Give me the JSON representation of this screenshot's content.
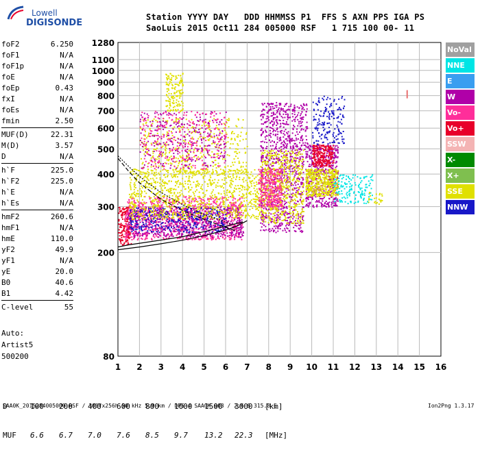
{
  "logo": {
    "top": "Lowell",
    "bottom": "DIGISONDE"
  },
  "header": {
    "line1": "Station YYYY DAY   DDD HHMMSS P1  FFS S AXN PPS IGA PS",
    "line2": "SaoLuis 2015 Oct11 284 005000 RSF   1 715 100 00- 11"
  },
  "params": [
    [
      {
        "k": "foF2",
        "v": "6.250"
      },
      {
        "k": "foF1",
        "v": "N/A"
      },
      {
        "k": "foF1p",
        "v": "N/A"
      },
      {
        "k": "foE",
        "v": "N/A"
      },
      {
        "k": "foEp",
        "v": "0.43"
      },
      {
        "k": "fxI",
        "v": "N/A"
      },
      {
        "k": "foEs",
        "v": "N/A"
      },
      {
        "k": "fmin",
        "v": "2.50"
      }
    ],
    [
      {
        "k": "MUF(D)",
        "v": "22.31"
      },
      {
        "k": "M(D)",
        "v": "3.57"
      },
      {
        "k": "D",
        "v": "N/A"
      }
    ],
    [
      {
        "k": "h`F",
        "v": "225.0"
      },
      {
        "k": "h`F2",
        "v": "225.0"
      },
      {
        "k": "h`E",
        "v": "N/A"
      },
      {
        "k": "h`Es",
        "v": "N/A"
      }
    ],
    [
      {
        "k": "hmF2",
        "v": "260.6"
      },
      {
        "k": "hmF1",
        "v": "N/A"
      },
      {
        "k": "hmE",
        "v": "110.0"
      },
      {
        "k": "yF2",
        "v": "49.9"
      },
      {
        "k": "yF1",
        "v": "N/A"
      },
      {
        "k": "yE",
        "v": "20.0"
      },
      {
        "k": "B0",
        "v": "40.6"
      },
      {
        "k": "B1",
        "v": "4.42"
      }
    ],
    [
      {
        "k": "C-level",
        "v": "55"
      }
    ]
  ],
  "auto": {
    "l1": "Auto:",
    "l2": "Artist5",
    "l3": "500200"
  },
  "legend": [
    {
      "label": "NoVal",
      "color": "#a0a0a0"
    },
    {
      "label": "NNE",
      "color": "#00e5e5"
    },
    {
      "label": "E",
      "color": "#3a9ef0"
    },
    {
      "label": "W",
      "color": "#b000a8"
    },
    {
      "label": "Vo-",
      "color": "#ff2e9a"
    },
    {
      "label": "Vo+",
      "color": "#e8002a"
    },
    {
      "label": "SSW",
      "color": "#f4b4b4"
    },
    {
      "label": "X-",
      "color": "#008a00"
    },
    {
      "label": "X+",
      "color": "#7fbf4f"
    },
    {
      "label": "SSE",
      "color": "#e0e000"
    },
    {
      "label": "NNW",
      "color": "#1818c8"
    }
  ],
  "dtable": {
    "d_label": "D",
    "d_values": [
      "100",
      "200",
      "400",
      "600",
      "800",
      "1000",
      "1500",
      "3000",
      "[km]"
    ],
    "muf_label": "MUF",
    "muf_values": [
      "6.6",
      "6.7",
      "7.0",
      "7.6",
      "8.5",
      "9.7",
      "13.2",
      "22.3"
    ],
    "muf_unit": "[MHz]"
  },
  "footer": {
    "left": "SAA0K_2015284005000.RSF / 300fx256h 50 kHz 5.0 km / DPS-4 SAA0K 903 / 2.6 S 315.8 E",
    "right": "Ion2Png 1.3.17"
  },
  "chart_data": {
    "type": "scatter",
    "x": {
      "min": 1,
      "max": 16,
      "ticks": [
        1,
        2,
        3,
        4,
        5,
        6,
        7,
        8,
        9,
        10,
        11,
        12,
        13,
        14,
        15,
        16
      ]
    },
    "y": {
      "scale": "log",
      "min": 80,
      "max": 1280,
      "ticks": [
        80,
        200,
        300,
        400,
        500,
        600,
        700,
        800,
        900,
        1000,
        1100,
        1280
      ]
    },
    "grid": true,
    "clusters": [
      {
        "f0": 1.0,
        "f1": 1.6,
        "h0": 215,
        "h1": 300,
        "color": "#e8002a",
        "n": 180
      },
      {
        "f0": 1.3,
        "f1": 6.8,
        "h0": 225,
        "h1": 330,
        "color": "#ff2e9a",
        "n": 900
      },
      {
        "f0": 1.4,
        "f1": 6.8,
        "h0": 230,
        "h1": 300,
        "color": "#b000a8",
        "n": 700
      },
      {
        "f0": 1.5,
        "f1": 6.0,
        "h0": 240,
        "h1": 300,
        "color": "#1818c8",
        "n": 300
      },
      {
        "f0": 1.5,
        "f1": 7.8,
        "h0": 270,
        "h1": 420,
        "color": "#e0e000",
        "n": 1000
      },
      {
        "f0": 2.0,
        "f1": 7.0,
        "h0": 400,
        "h1": 660,
        "color": "#e0e000",
        "n": 450
      },
      {
        "f0": 2.0,
        "f1": 6.0,
        "h0": 420,
        "h1": 700,
        "color": "#b000a8",
        "n": 300
      },
      {
        "f0": 2.0,
        "f1": 6.0,
        "h0": 420,
        "h1": 700,
        "color": "#ff2e9a",
        "n": 260
      },
      {
        "f0": 3.2,
        "f1": 4.0,
        "h0": 700,
        "h1": 980,
        "color": "#e0e000",
        "n": 150
      },
      {
        "f0": 7.6,
        "f1": 9.6,
        "h0": 240,
        "h1": 500,
        "color": "#b000a8",
        "n": 600
      },
      {
        "f0": 7.6,
        "f1": 9.6,
        "h0": 260,
        "h1": 500,
        "color": "#e0e000",
        "n": 550
      },
      {
        "f0": 7.6,
        "f1": 9.8,
        "h0": 500,
        "h1": 760,
        "color": "#b000a8",
        "n": 400
      },
      {
        "f0": 7.5,
        "f1": 8.6,
        "h0": 300,
        "h1": 420,
        "color": "#ff2e9a",
        "n": 300
      },
      {
        "f0": 9.7,
        "f1": 11.2,
        "h0": 300,
        "h1": 520,
        "color": "#b000a8",
        "n": 500
      },
      {
        "f0": 9.7,
        "f1": 11.2,
        "h0": 330,
        "h1": 420,
        "color": "#e0e000",
        "n": 450
      },
      {
        "f0": 10.0,
        "f1": 11.0,
        "h0": 430,
        "h1": 520,
        "color": "#e8002a",
        "n": 220
      },
      {
        "f0": 10.0,
        "f1": 11.5,
        "h0": 520,
        "h1": 800,
        "color": "#1818c8",
        "n": 180
      },
      {
        "f0": 11.0,
        "f1": 12.8,
        "h0": 310,
        "h1": 400,
        "color": "#00e5e5",
        "n": 150
      },
      {
        "f0": 12.6,
        "f1": 13.3,
        "h0": 305,
        "h1": 345,
        "color": "#e0e000",
        "n": 25
      }
    ],
    "curves": [
      {
        "name": "trace-virtual-height",
        "type": "solid",
        "points": [
          [
            1.0,
            205
          ],
          [
            2.0,
            210
          ],
          [
            3.0,
            216
          ],
          [
            4.0,
            223
          ],
          [
            5.0,
            232
          ],
          [
            6.0,
            244
          ],
          [
            6.5,
            252
          ],
          [
            7.0,
            265
          ]
        ]
      },
      {
        "name": "trace-x-mode",
        "type": "solid",
        "points": [
          [
            1.0,
            210
          ],
          [
            1.5,
            214
          ],
          [
            2.5,
            220
          ],
          [
            4.0,
            230
          ],
          [
            5.5,
            246
          ],
          [
            6.8,
            262
          ]
        ]
      },
      {
        "name": "profile-dashed",
        "type": "dashed",
        "points": [
          [
            1.0,
            460
          ],
          [
            1.5,
            410
          ],
          [
            2.0,
            370
          ],
          [
            3.0,
            320
          ],
          [
            4.0,
            290
          ],
          [
            5.0,
            268
          ],
          [
            6.0,
            250
          ],
          [
            6.5,
            242
          ]
        ]
      },
      {
        "name": "profile-dotted",
        "type": "dotted",
        "points": [
          [
            1.0,
            470
          ],
          [
            1.6,
            420
          ],
          [
            2.2,
            380
          ],
          [
            3.0,
            340
          ],
          [
            4.0,
            305
          ],
          [
            5.0,
            280
          ],
          [
            6.2,
            258
          ]
        ]
      }
    ],
    "marker": {
      "f": 14.4,
      "h": 810,
      "color": "#e87070"
    }
  }
}
